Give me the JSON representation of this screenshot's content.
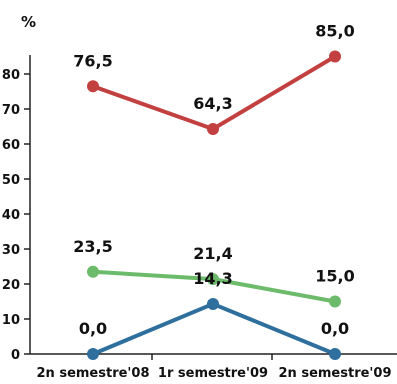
{
  "chart_data": {
    "type": "line",
    "y_unit": "%",
    "categories": [
      "2n semestre'08",
      "1r semestre'09",
      "2n semestre'09"
    ],
    "y_ticks": [
      "0",
      "10",
      "20",
      "30",
      "40",
      "50",
      "60",
      "70",
      "80"
    ],
    "ylim": [
      0,
      85
    ],
    "grid": false,
    "series": [
      {
        "color": "#c2403f",
        "values": [
          76.5,
          64.3,
          85.0
        ],
        "labels": [
          "76,5",
          "64,3",
          "85,0"
        ]
      },
      {
        "color": "#6cbb6a",
        "values": [
          23.5,
          21.4,
          15.0
        ],
        "labels": [
          "23,5",
          "21,4",
          "15,0"
        ]
      },
      {
        "color": "#2e6f9e",
        "values": [
          0.0,
          14.3,
          0.0
        ],
        "labels": [
          "0,0",
          "14,3",
          "0,0"
        ]
      }
    ]
  }
}
